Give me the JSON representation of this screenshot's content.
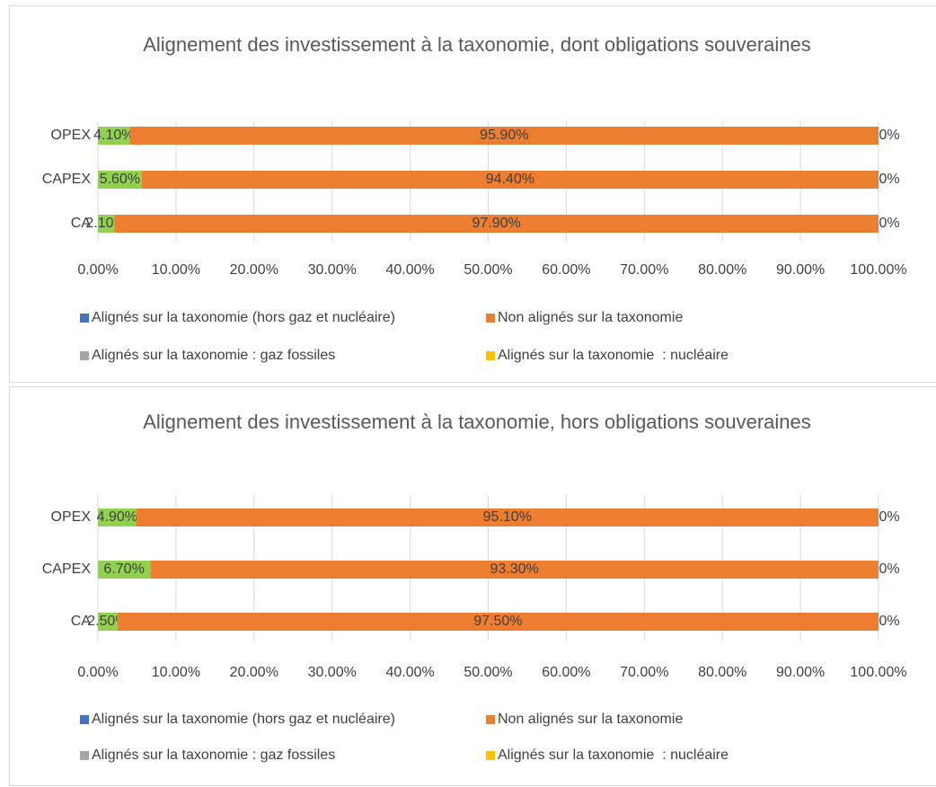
{
  "chart_data": [
    {
      "type": "bar",
      "orientation": "horizontal",
      "stacked": true,
      "title": "Alignement des investissement à la taxonomie, dont obligations souveraines",
      "categories": [
        "OPEX",
        "CAPEX",
        "CA"
      ],
      "series": [
        {
          "name": "Alignés sur la taxonomie (hors gaz et nucléaire)",
          "color": "#4472c4",
          "bar_color": "#92d050",
          "values": [
            4.1,
            5.6,
            2.1
          ],
          "value_labels": [
            "4.10%",
            "5.60%",
            "2.10%"
          ]
        },
        {
          "name": "Non alignés sur la taxonomie",
          "color": "#ed7d31",
          "values": [
            95.9,
            94.4,
            97.9
          ],
          "value_labels": [
            "95.90%",
            "94.40%",
            "97.90%"
          ]
        },
        {
          "name": "Alignés sur la taxonomie : gaz fossiles",
          "color": "#a5a5a5",
          "values": [
            0,
            0,
            0
          ]
        },
        {
          "name": "Alignés sur la taxonomie  : nucléaire",
          "color": "#ffc000",
          "values": [
            0,
            0,
            0
          ],
          "value_labels": [
            "0%",
            "0%",
            "0%"
          ]
        }
      ],
      "xlim": [
        0,
        100
      ],
      "xticks": [
        {
          "value": 0,
          "label": "0.00%"
        },
        {
          "value": 10,
          "label": "10.00%"
        },
        {
          "value": 20,
          "label": "20.00%"
        },
        {
          "value": 30,
          "label": "30.00%"
        },
        {
          "value": 40,
          "label": "40.00%"
        },
        {
          "value": 50,
          "label": "50.00%"
        },
        {
          "value": 60,
          "label": "60.00%"
        },
        {
          "value": 70,
          "label": "70.00%"
        },
        {
          "value": 80,
          "label": "80.00%"
        },
        {
          "value": 90,
          "label": "90.00%"
        },
        {
          "value": 100,
          "label": "100.00%"
        }
      ],
      "grid": true,
      "legend": "bottom"
    },
    {
      "type": "bar",
      "orientation": "horizontal",
      "stacked": true,
      "title": "Alignement des investissement à la taxonomie, hors obligations souveraines",
      "categories": [
        "OPEX",
        "CAPEX",
        "CA"
      ],
      "series": [
        {
          "name": "Alignés sur la taxonomie (hors gaz et nucléaire)",
          "color": "#4472c4",
          "bar_color": "#92d050",
          "values": [
            4.9,
            6.7,
            2.5
          ],
          "value_labels": [
            "4.90%",
            "6.70%",
            "2.50%"
          ]
        },
        {
          "name": "Non alignés sur la taxonomie",
          "color": "#ed7d31",
          "values": [
            95.1,
            93.3,
            97.5
          ],
          "value_labels": [
            "95.10%",
            "93.30%",
            "97.50%"
          ]
        },
        {
          "name": "Alignés sur la taxonomie : gaz fossiles",
          "color": "#a5a5a5",
          "values": [
            0,
            0,
            0
          ]
        },
        {
          "name": "Alignés sur la taxonomie  : nucléaire",
          "color": "#ffc000",
          "values": [
            0,
            0,
            0
          ],
          "value_labels": [
            "0%",
            "0%",
            "0%"
          ]
        }
      ],
      "xlim": [
        0,
        100
      ],
      "xticks": [
        {
          "value": 0,
          "label": "0.00%"
        },
        {
          "value": 10,
          "label": "10.00%"
        },
        {
          "value": 20,
          "label": "20.00%"
        },
        {
          "value": 30,
          "label": "30.00%"
        },
        {
          "value": 40,
          "label": "40.00%"
        },
        {
          "value": 50,
          "label": "50.00%"
        },
        {
          "value": 60,
          "label": "60.00%"
        },
        {
          "value": 70,
          "label": "70.00%"
        },
        {
          "value": 80,
          "label": "80.00%"
        },
        {
          "value": 90,
          "label": "90.00%"
        },
        {
          "value": 100,
          "label": "100.00%"
        }
      ],
      "grid": true,
      "legend": "bottom"
    }
  ]
}
